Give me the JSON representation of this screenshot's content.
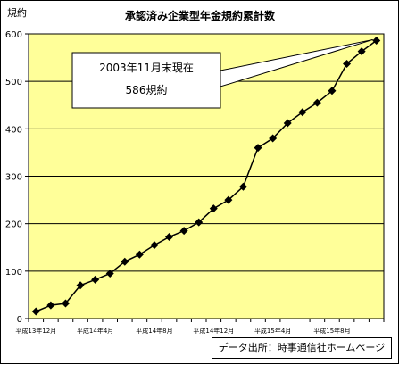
{
  "chart_data": {
    "type": "line",
    "title": "承認済み企業型年金規約累計数",
    "ylabel": "規約",
    "ylim": [
      0,
      600
    ],
    "yticks": [
      0,
      100,
      200,
      300,
      400,
      500,
      600
    ],
    "grid": true,
    "x_tick_labels": [
      "平成13年12月",
      "平成14年4月",
      "平成14年8月",
      "平成14年12月",
      "平成15年4月",
      "平成15年8月"
    ],
    "x_tick_indices": [
      0,
      4,
      8,
      12,
      16,
      20
    ],
    "series": [
      {
        "color": "#000000",
        "marker": "diamond",
        "values": [
          15,
          28,
          32,
          70,
          82,
          95,
          120,
          135,
          155,
          172,
          185,
          203,
          232,
          250,
          278,
          360,
          380,
          412,
          435,
          455,
          480,
          537,
          563,
          586
        ]
      }
    ],
    "annotation": {
      "line1": "2003年11月末現在",
      "line2": "586規約"
    },
    "plot_background": "#ffff99"
  },
  "source_label": "データ出所：時事通信社ホームページ"
}
